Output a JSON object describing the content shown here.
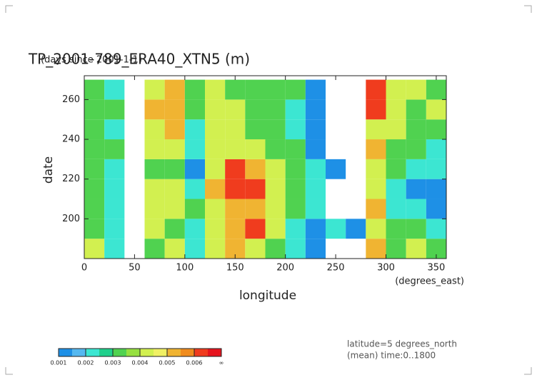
{
  "chart_data": {
    "type": "contour",
    "title": "TP_2001-789_ERA40_XTN5 (m)",
    "y_units": "(days since 2001-1-1)",
    "x_units": "(degrees_east)",
    "xlabel": "longitude",
    "ylabel": "date",
    "notes": [
      "latitude=5 degrees_north",
      "(mean) time:0..1800"
    ],
    "xlim": [
      0,
      360
    ],
    "ylim": [
      180,
      272
    ],
    "xticks": [
      0,
      50,
      100,
      150,
      200,
      250,
      300,
      350
    ],
    "yticks": [
      200,
      220,
      240,
      260
    ],
    "x": [
      10,
      30,
      50,
      70,
      90,
      110,
      130,
      150,
      170,
      190,
      210,
      230,
      250,
      270,
      290,
      310,
      330,
      350
    ],
    "y": [
      185,
      195,
      205,
      215,
      225,
      235,
      245,
      255,
      265
    ],
    "values": [
      [
        0.004,
        0.002,
        0.0005,
        0.003,
        0.004,
        0.002,
        0.004,
        0.005,
        0.004,
        0.003,
        0.002,
        0.001,
        0.0005,
        0.0005,
        0.005,
        0.003,
        0.004,
        0.003
      ],
      [
        0.003,
        0.002,
        0.0005,
        0.004,
        0.003,
        0.002,
        0.004,
        0.005,
        0.006,
        0.004,
        0.002,
        0.001,
        0.002,
        0.001,
        0.004,
        0.003,
        0.003,
        0.002
      ],
      [
        0.003,
        0.002,
        0.0005,
        0.004,
        0.004,
        0.003,
        0.004,
        0.005,
        0.005,
        0.004,
        0.003,
        0.002,
        0.0005,
        0.0005,
        0.005,
        0.002,
        0.002,
        0.001
      ],
      [
        0.003,
        0.002,
        0.0005,
        0.004,
        0.004,
        0.002,
        0.005,
        0.006,
        0.006,
        0.004,
        0.003,
        0.002,
        0.0005,
        0.0005,
        0.004,
        0.002,
        0.001,
        0.001
      ],
      [
        0.003,
        0.002,
        0.0005,
        0.003,
        0.003,
        0.001,
        0.004,
        0.006,
        0.005,
        0.004,
        0.003,
        0.002,
        0.001,
        0.0005,
        0.004,
        0.003,
        0.002,
        0.002
      ],
      [
        0.003,
        0.003,
        0.0005,
        0.004,
        0.004,
        0.002,
        0.004,
        0.004,
        0.004,
        0.003,
        0.003,
        0.001,
        0.0005,
        0.0005,
        0.005,
        0.003,
        0.003,
        0.002
      ],
      [
        0.003,
        0.002,
        0.0005,
        0.004,
        0.005,
        0.002,
        0.004,
        0.004,
        0.003,
        0.003,
        0.002,
        0.001,
        0.0005,
        0.0005,
        0.004,
        0.004,
        0.003,
        0.003
      ],
      [
        0.003,
        0.003,
        0.0005,
        0.005,
        0.005,
        0.003,
        0.004,
        0.004,
        0.003,
        0.003,
        0.002,
        0.001,
        0.0005,
        0.0005,
        0.006,
        0.004,
        0.003,
        0.004
      ],
      [
        0.003,
        0.002,
        0.0005,
        0.004,
        0.005,
        0.003,
        0.004,
        0.003,
        0.003,
        0.003,
        0.003,
        0.001,
        0.0005,
        0.0005,
        0.006,
        0.004,
        0.004,
        0.003
      ]
    ],
    "levels": [
      0.001,
      0.002,
      0.003,
      0.004,
      0.005,
      0.006
    ],
    "top_label": "∞",
    "colors": [
      "#1e90e6",
      "#55b8f0",
      "#3ce6d2",
      "#20d08c",
      "#50d250",
      "#96e040",
      "#d2f050",
      "#f0f064",
      "#f0b432",
      "#f08c1e",
      "#f03c1e",
      "#e6141e"
    ]
  }
}
